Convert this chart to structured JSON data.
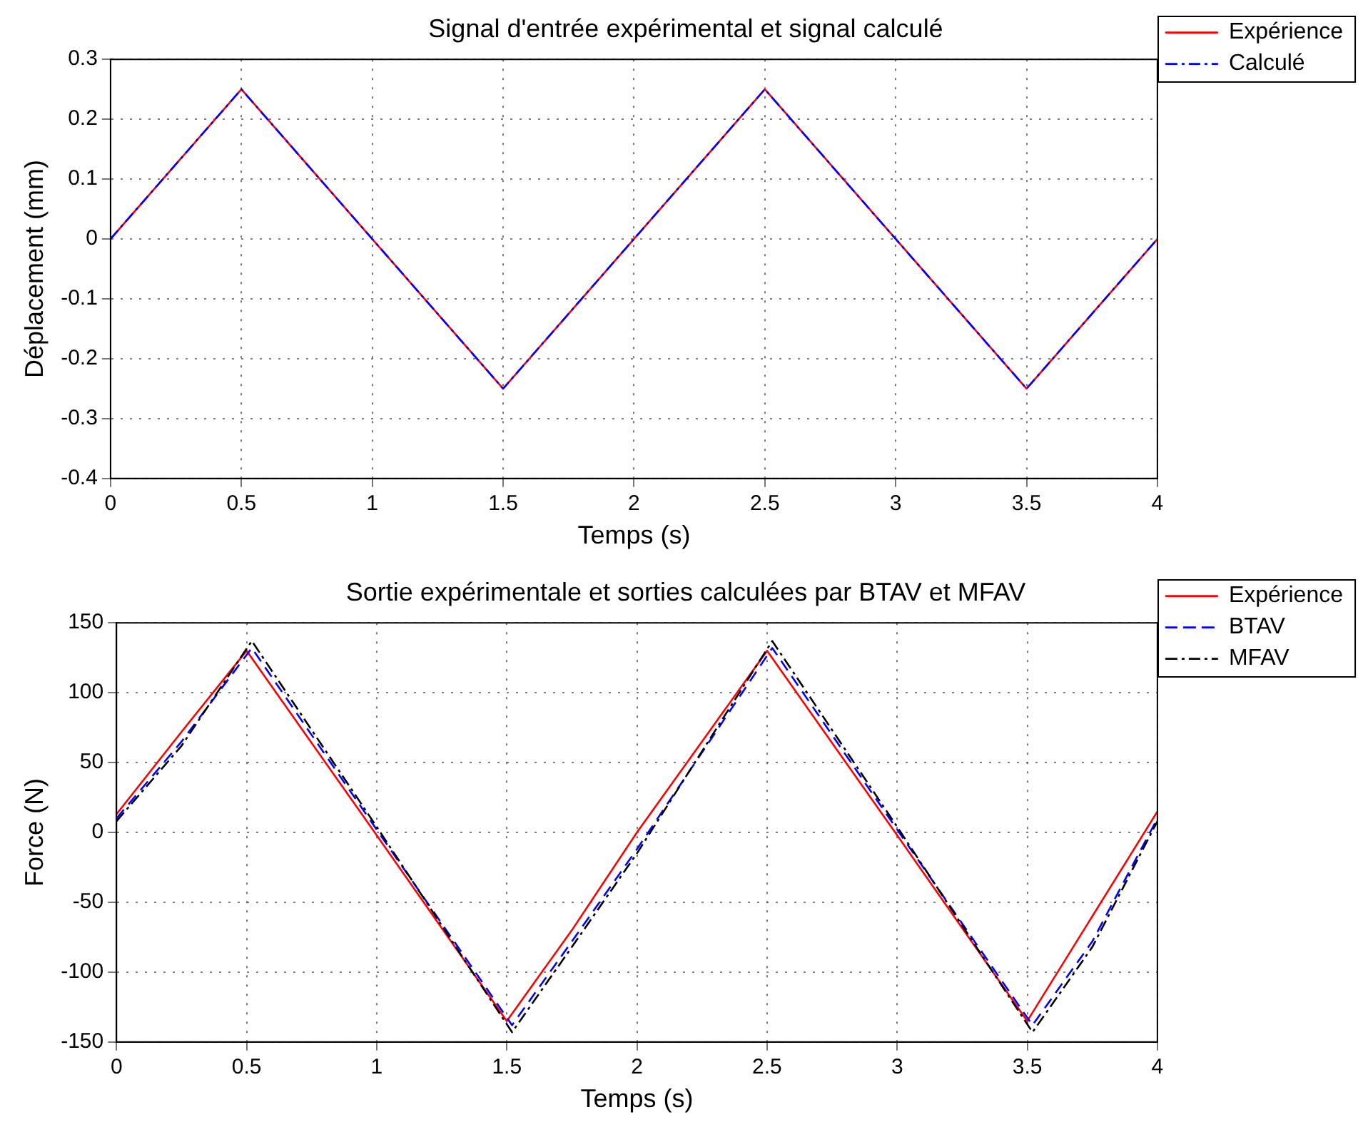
{
  "chart_data": [
    {
      "type": "line",
      "title": "Signal d'entrée expérimental et signal calculé",
      "xlabel": "Temps (s)",
      "ylabel": "Déplacement (mm)",
      "x": [
        0,
        0.5,
        1.5,
        2.5,
        3.5,
        4
      ],
      "series": [
        {
          "name": "Expérience",
          "color": "#ff0000",
          "line_style": "solid",
          "values": [
            0,
            0.25,
            -0.25,
            0.25,
            -0.25,
            0
          ]
        },
        {
          "name": "Calculé",
          "color": "#0000ff",
          "line_style": "dashdot",
          "values": [
            0,
            0.25,
            -0.25,
            0.25,
            -0.25,
            0
          ]
        }
      ],
      "xlim": [
        0,
        4
      ],
      "xticks": [
        0,
        0.5,
        1,
        1.5,
        2,
        2.5,
        3,
        3.5,
        4
      ],
      "ylim": [
        -0.4,
        0.3
      ],
      "yticks": [
        -0.4,
        -0.3,
        -0.2,
        -0.1,
        0,
        0.1,
        0.2,
        0.3
      ],
      "grid": true,
      "legend": "top right",
      "marker": "none"
    },
    {
      "type": "line",
      "title": "Sortie expérimentale et sorties calculées par BTAV et MFAV",
      "xlabel": "Temps (s)",
      "ylabel": "Force (N)",
      "series": [
        {
          "name": "Expérience",
          "color": "#ff0000",
          "line_style": "solid",
          "x": [
            0,
            0.25,
            0.5,
            1,
            1.5,
            1.75,
            2,
            2.5,
            3,
            3.5,
            3.75,
            4
          ],
          "values": [
            13,
            72,
            130,
            -2,
            -135,
            -70,
            0,
            130,
            -2,
            -135,
            -60,
            15
          ]
        },
        {
          "name": "BTAV",
          "color": "#0000ff",
          "line_style": "dashed",
          "x": [
            0,
            0.25,
            0.52,
            1,
            1.52,
            1.75,
            2,
            2.52,
            3,
            3.52,
            3.75,
            4
          ],
          "values": [
            10,
            65,
            132,
            2,
            -138,
            -78,
            -12,
            132,
            2,
            -138,
            -78,
            10
          ]
        },
        {
          "name": "MFAV",
          "color": "#000000",
          "line_style": "dashdot",
          "x": [
            0,
            0.25,
            0.52,
            1,
            1.52,
            1.75,
            2,
            2.52,
            3,
            3.52,
            3.75,
            4
          ],
          "values": [
            8,
            62,
            137,
            4,
            -143,
            -82,
            -15,
            137,
            4,
            -143,
            -82,
            8
          ]
        }
      ],
      "xlim": [
        0,
        4
      ],
      "xticks": [
        0,
        0.5,
        1,
        1.5,
        2,
        2.5,
        3,
        3.5,
        4
      ],
      "ylim": [
        -150,
        150
      ],
      "yticks": [
        -150,
        -100,
        -50,
        0,
        50,
        100,
        150
      ],
      "grid": true,
      "legend": "top right",
      "marker": "none"
    }
  ]
}
